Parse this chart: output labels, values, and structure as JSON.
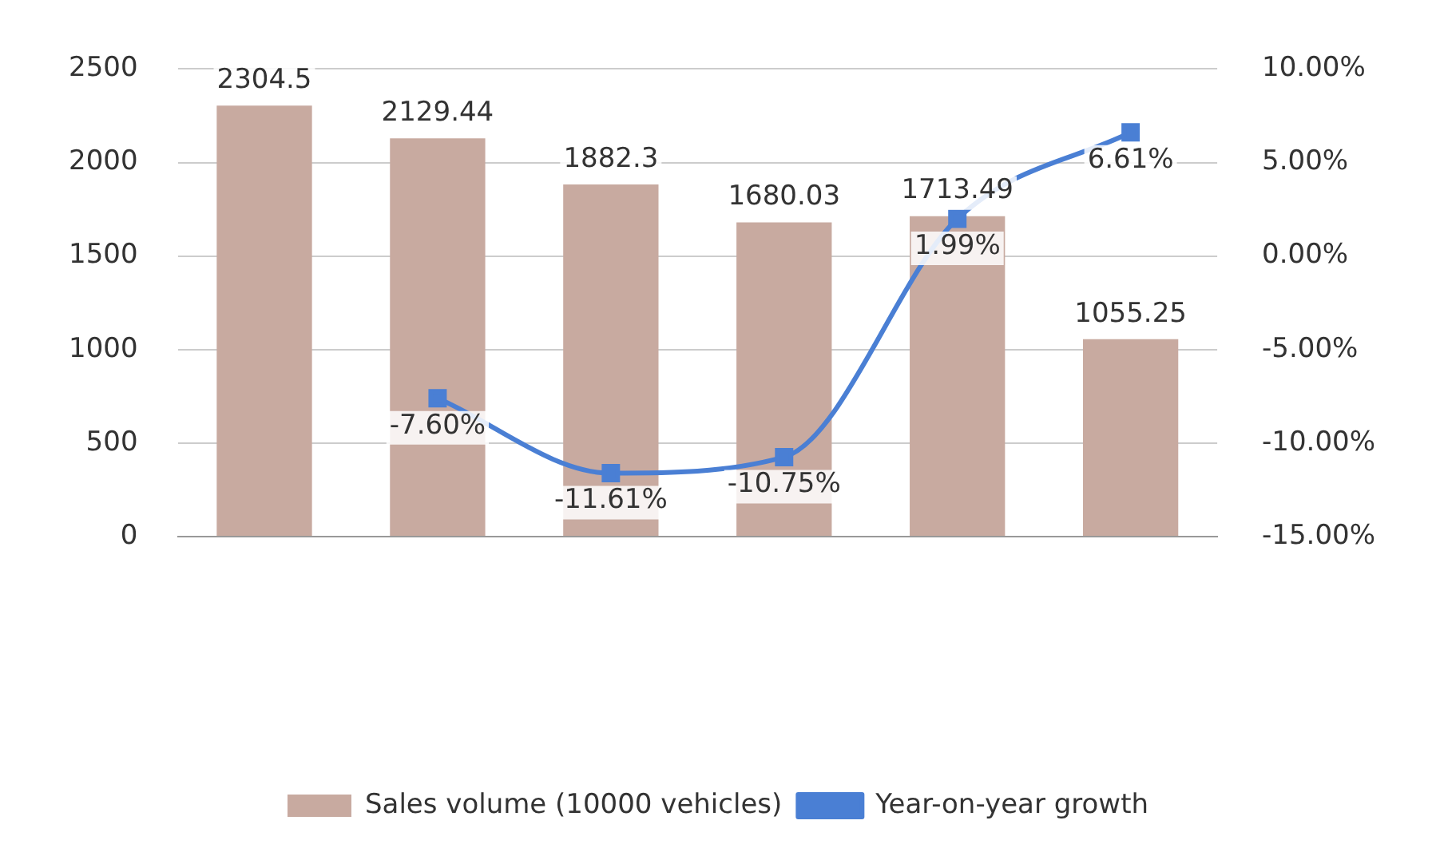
{
  "chart_data": {
    "type": "bar",
    "categories": [
      null,
      null,
      null,
      null,
      null,
      null
    ],
    "series": [
      {
        "name": "Sales volume (10000 vehicles)",
        "color": "#c8aaa0",
        "values": [
          2304.5,
          2129.44,
          1882.3,
          1680.03,
          1713.49,
          1055.25
        ],
        "value_labels": [
          "2304.5",
          "2129.44",
          "1882.3",
          "1680.03",
          "1713.49",
          "1055.25"
        ]
      },
      {
        "name": "Year-on-year growth",
        "type": "line",
        "axis": "y2",
        "color": "#4a7fd4",
        "values": [
          null,
          -7.6,
          -11.61,
          -10.75,
          1.99,
          6.61
        ],
        "value_labels": [
          null,
          "-7.60%",
          "-11.61%",
          "-10.75%",
          "1.99%",
          "6.61%"
        ]
      }
    ],
    "ylim": [
      0,
      2500
    ],
    "yticks": [
      0,
      500,
      1000,
      1500,
      2000,
      2500
    ],
    "y2lim": [
      -15,
      10
    ],
    "y2ticks": [
      {
        "value": -15,
        "label": "-15.00%"
      },
      {
        "value": -10,
        "label": "-10.00%"
      },
      {
        "value": -5,
        "label": "-5.00%"
      },
      {
        "value": 0,
        "label": "0.00%"
      },
      {
        "value": 5,
        "label": "5.00%"
      },
      {
        "value": 10,
        "label": "10.00%"
      }
    ],
    "grid": "y",
    "legend": "bottom",
    "marker": "square",
    "line_style": "solid"
  }
}
